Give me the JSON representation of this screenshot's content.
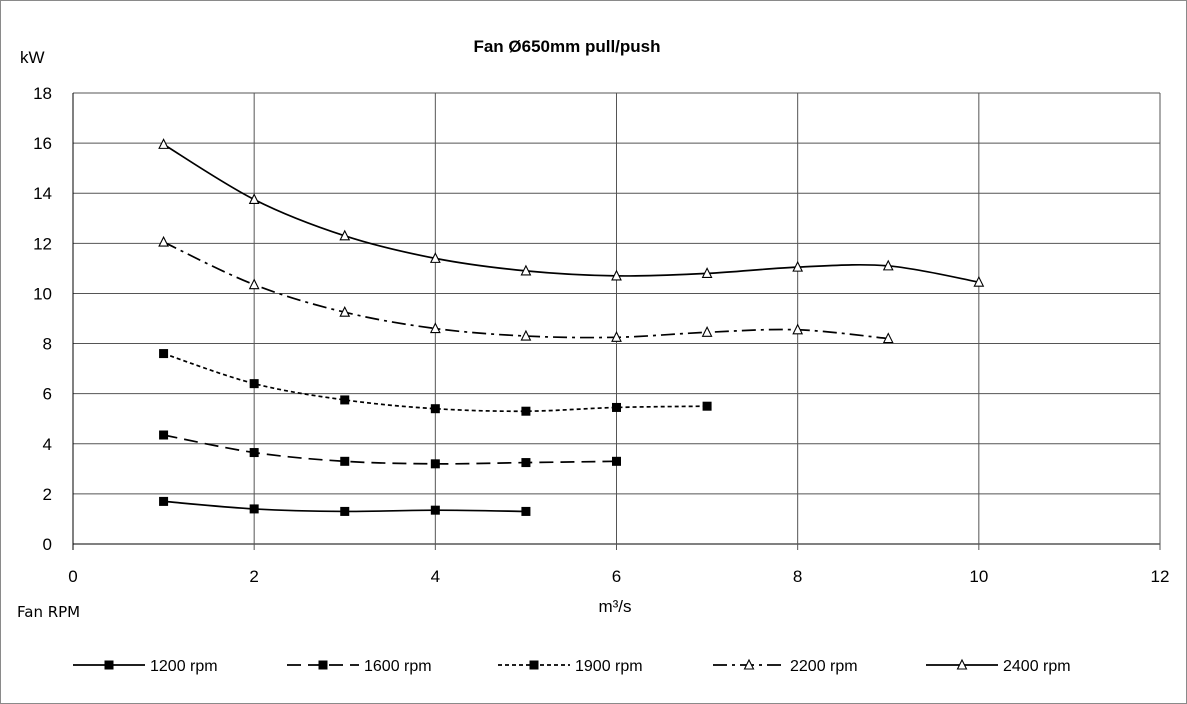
{
  "chart_data": {
    "type": "line",
    "title": "Fan Ø650mm pull/push",
    "ylabel": "kW",
    "xlabel": "m³/s",
    "note": "Fan RPM",
    "xlim": [
      0,
      12
    ],
    "ylim": [
      0,
      18
    ],
    "xticks": [
      "0",
      "2",
      "4",
      "6",
      "8",
      "10",
      "12"
    ],
    "yticks": [
      "0",
      "2",
      "4",
      "6",
      "8",
      "10",
      "12",
      "14",
      "16",
      "18"
    ],
    "grid": true,
    "legend_position": "bottom",
    "series": [
      {
        "name": "1200 rpm",
        "marker": "square",
        "dash": "solid",
        "x": [
          1,
          2,
          3,
          4,
          5
        ],
        "y": [
          1.7,
          1.4,
          1.3,
          1.35,
          1.3
        ]
      },
      {
        "name": "1600 rpm",
        "marker": "square",
        "dash": "long-dash",
        "x": [
          1,
          2,
          3,
          4,
          5,
          6
        ],
        "y": [
          4.35,
          3.65,
          3.3,
          3.2,
          3.25,
          3.3
        ]
      },
      {
        "name": "1900 rpm",
        "marker": "square",
        "dash": "short-dash",
        "x": [
          1,
          2,
          3,
          4,
          5,
          6,
          7
        ],
        "y": [
          7.6,
          6.4,
          5.75,
          5.4,
          5.3,
          5.45,
          5.5
        ]
      },
      {
        "name": "2200 rpm",
        "marker": "open-triangle",
        "dash": "dash-dot",
        "x": [
          1,
          2,
          3,
          4,
          5,
          6,
          7,
          8,
          9
        ],
        "y": [
          12.05,
          10.35,
          9.25,
          8.6,
          8.3,
          8.25,
          8.45,
          8.55,
          8.2
        ]
      },
      {
        "name": "2400 rpm",
        "marker": "open-triangle",
        "dash": "solid",
        "x": [
          1,
          2,
          3,
          4,
          5,
          6,
          7,
          8,
          9,
          10
        ],
        "y": [
          15.95,
          13.75,
          12.3,
          11.4,
          10.9,
          10.7,
          10.8,
          11.05,
          11.1,
          10.45
        ]
      }
    ]
  }
}
